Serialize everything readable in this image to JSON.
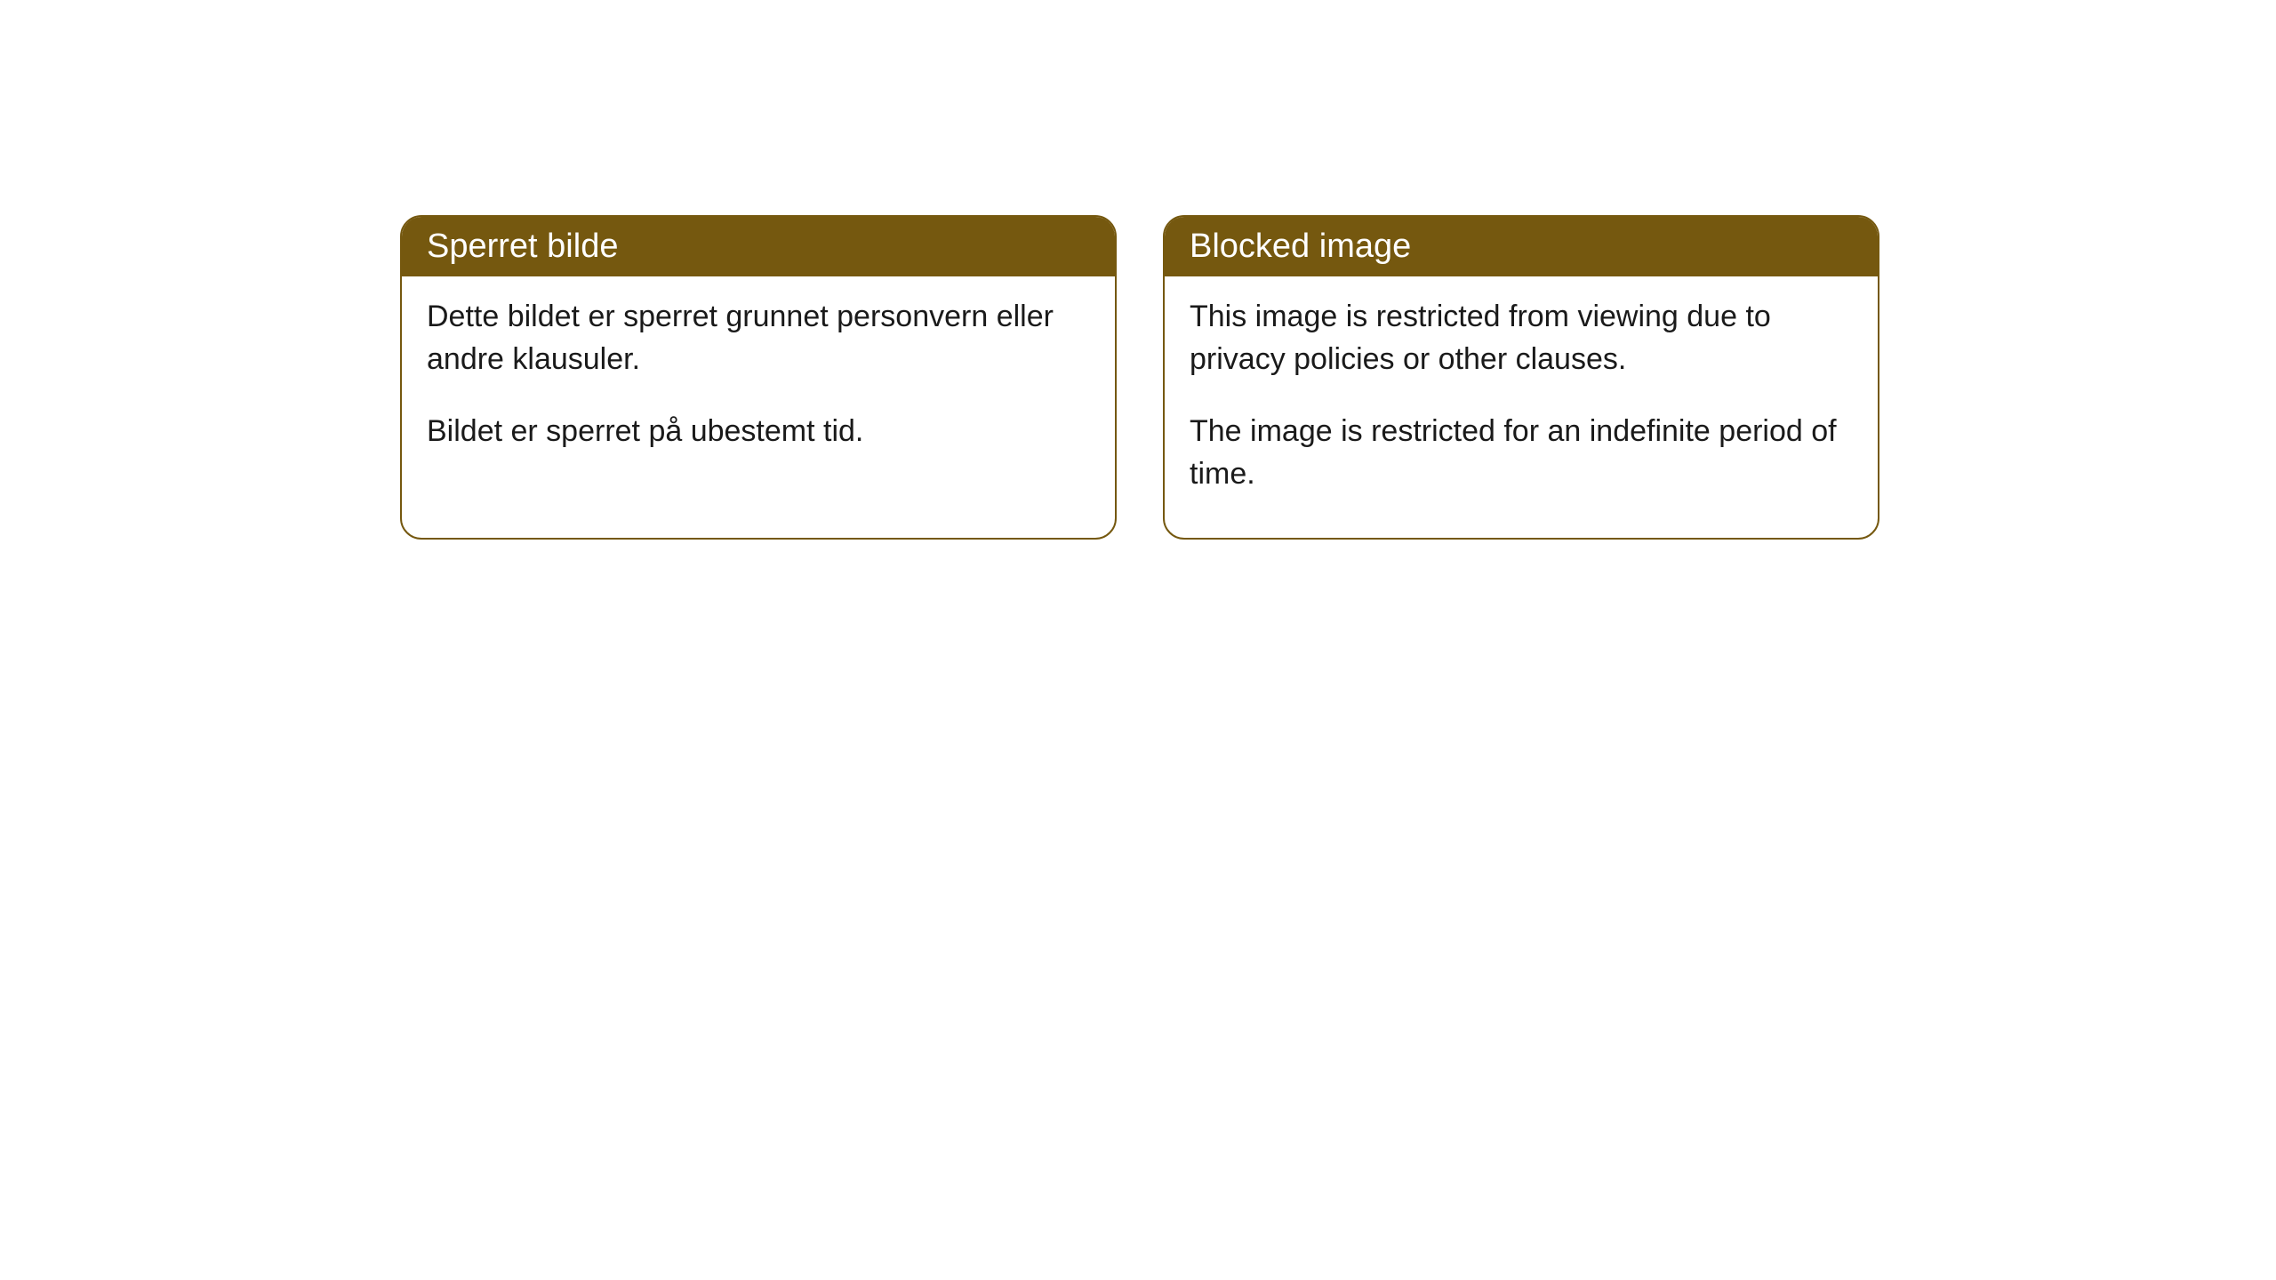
{
  "cards": [
    {
      "title": "Sperret bilde",
      "paragraph1": "Dette bildet er sperret grunnet personvern eller andre klausuler.",
      "paragraph2": "Bildet er sperret på ubestemt tid."
    },
    {
      "title": "Blocked image",
      "paragraph1": "This image is restricted from viewing due to privacy policies or other clauses.",
      "paragraph2": "The image is restricted for an indefinite period of time."
    }
  ],
  "style": {
    "header_background": "#75580f",
    "header_text_color": "#ffffff",
    "border_color": "#75580f",
    "body_background": "#ffffff",
    "body_text_color": "#1a1a1a",
    "border_radius": 24,
    "title_fontsize": 38,
    "body_fontsize": 34
  }
}
